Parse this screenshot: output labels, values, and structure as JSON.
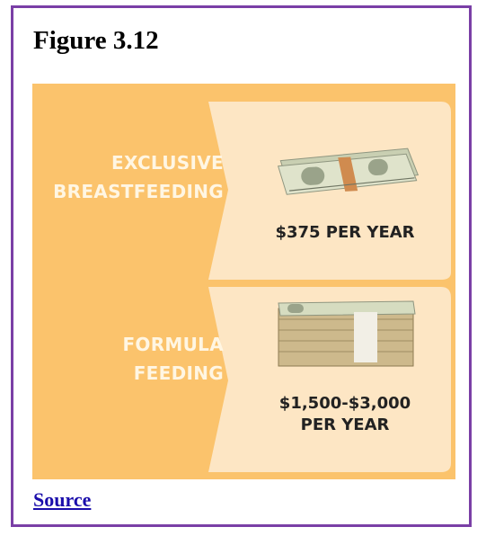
{
  "figure": {
    "title": "Figure 3.12"
  },
  "infographic": {
    "panels": [
      {
        "label_lines": [
          "EXCLUSIVE",
          "BREASTFEEDING"
        ],
        "price_lines": [
          "$375 PER YEAR"
        ],
        "image": "money-stack-small-icon"
      },
      {
        "label_lines": [
          "FORMULA",
          "FEEDING"
        ],
        "price_lines": [
          "$1,500-$3,000",
          "PER YEAR"
        ],
        "image": "money-stack-large-icon"
      }
    ],
    "colors": {
      "background": "#fbc36c",
      "panel": "#fde6c4",
      "label_text": "#fff6e3",
      "price_text": "#222222"
    }
  },
  "source": {
    "label": "Source"
  }
}
